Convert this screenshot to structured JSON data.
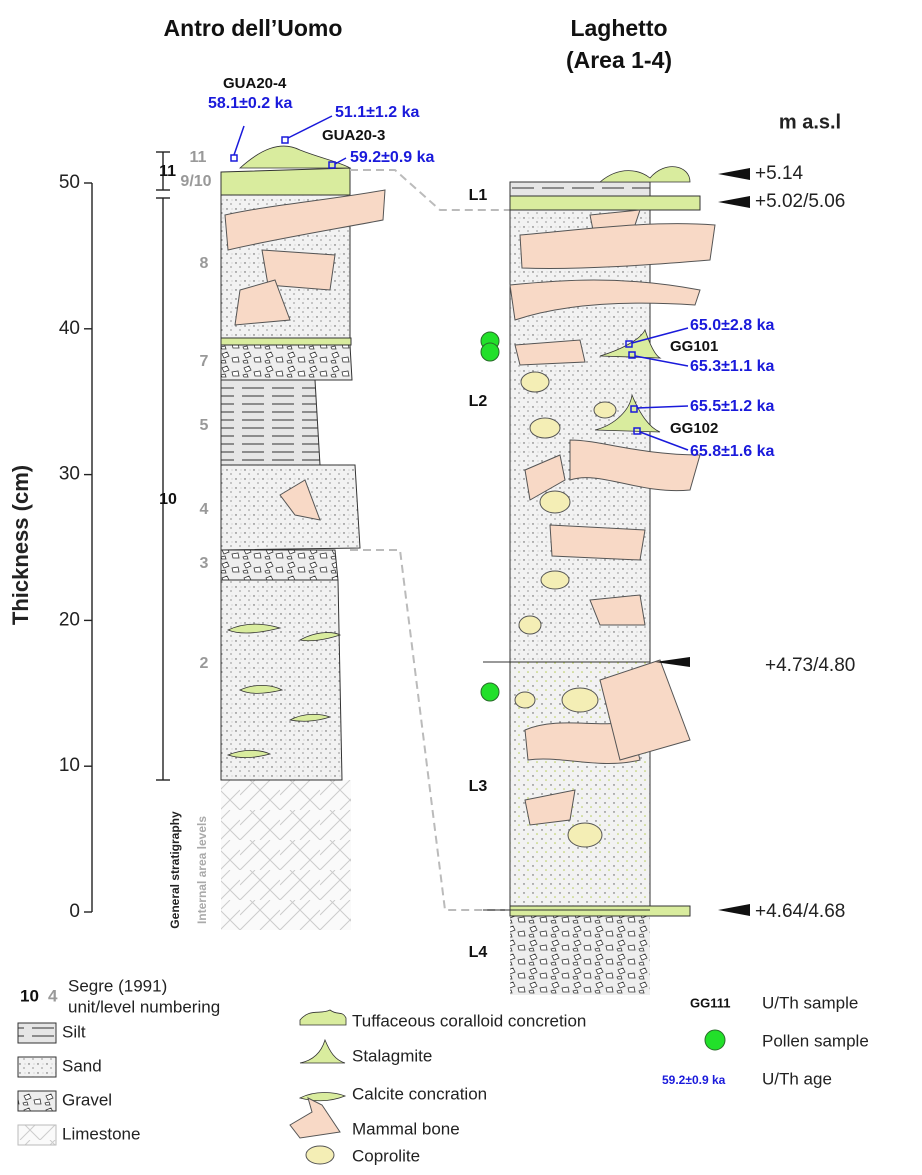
{
  "axis": {
    "label": "Thickness (cm)",
    "ticks": [
      0,
      10,
      20,
      30,
      40,
      50
    ]
  },
  "left_section": {
    "title": "Antro dell’Uomo",
    "sample_labels": [
      "GUA20-4",
      "GUA20-3"
    ],
    "ages": [
      "58.1±0.2 ka",
      "51.1±1.2 ka",
      "59.2±0.9 ka"
    ],
    "general_units": [
      "11",
      "10"
    ],
    "level_labels": [
      "11",
      "9/10",
      "8",
      "7",
      "5",
      "4",
      "3",
      "2"
    ],
    "general_caption": "General stratigraphy",
    "internal_caption": "Internal area levels"
  },
  "right_section": {
    "title_lines": [
      "Laghetto",
      "(Area 1-4)"
    ],
    "elevation_header": "m a.s.l",
    "levels": [
      "L1",
      "L2",
      "L3",
      "L4"
    ],
    "elevations": [
      "+5.14",
      "+5.02/5.06",
      "+4.73/4.80",
      "+4.64/4.68"
    ],
    "sample_labels": [
      "GG101",
      "GG102"
    ],
    "ages": [
      "65.0±2.8 ka",
      "65.3±1.1 ka",
      "65.5±1.2 ka",
      "65.8±1.6 ka"
    ]
  },
  "legend": {
    "numbering_examples": [
      "10",
      "4"
    ],
    "numbering_text": [
      "Segre (1991)",
      "unit/level numbering"
    ],
    "lithology": [
      "Silt",
      "Sand",
      "Gravel",
      "Limestone"
    ],
    "features": [
      "Tuffaceous coralloid concretion",
      "Stalagmite",
      "Calcite concration",
      "Mammal bone",
      "Coprolite"
    ],
    "sample_example": "GG111",
    "sample_text": "U/Th sample",
    "pollen_text": "Pollen sample",
    "age_example": "59.2±0.9 ka",
    "age_text": "U/Th age"
  }
}
